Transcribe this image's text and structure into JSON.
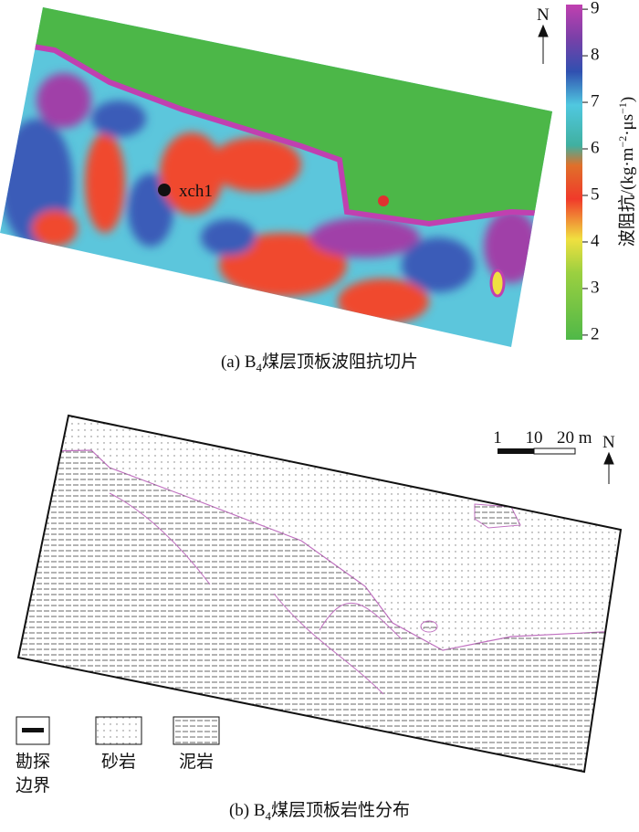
{
  "figure_a": {
    "north": "N",
    "well_label": "xch1",
    "colorbar": {
      "label_parts": [
        "波阻抗/(kg·m",
        "−2",
        "·μs",
        "−1",
        ")"
      ],
      "lim": [
        1.9,
        9.1
      ],
      "ticks": [
        2,
        3,
        4,
        5,
        6,
        7,
        8,
        9
      ]
    },
    "caption": {
      "prefix": "(a) B",
      "subscript": "4",
      "text": "煤层顶板波阻抗切片"
    }
  },
  "figure_b": {
    "north": "N",
    "scale_bar": [
      "1",
      "10",
      "20 m"
    ],
    "legend": [
      {
        "lines": [
          "勘探",
          "边界"
        ]
      },
      {
        "lines": [
          "砂岩"
        ]
      },
      {
        "lines": [
          "泥岩"
        ]
      }
    ],
    "caption": {
      "prefix": "(b) B",
      "subscript": "4",
      "text": "煤层顶板岩性分布"
    }
  }
}
